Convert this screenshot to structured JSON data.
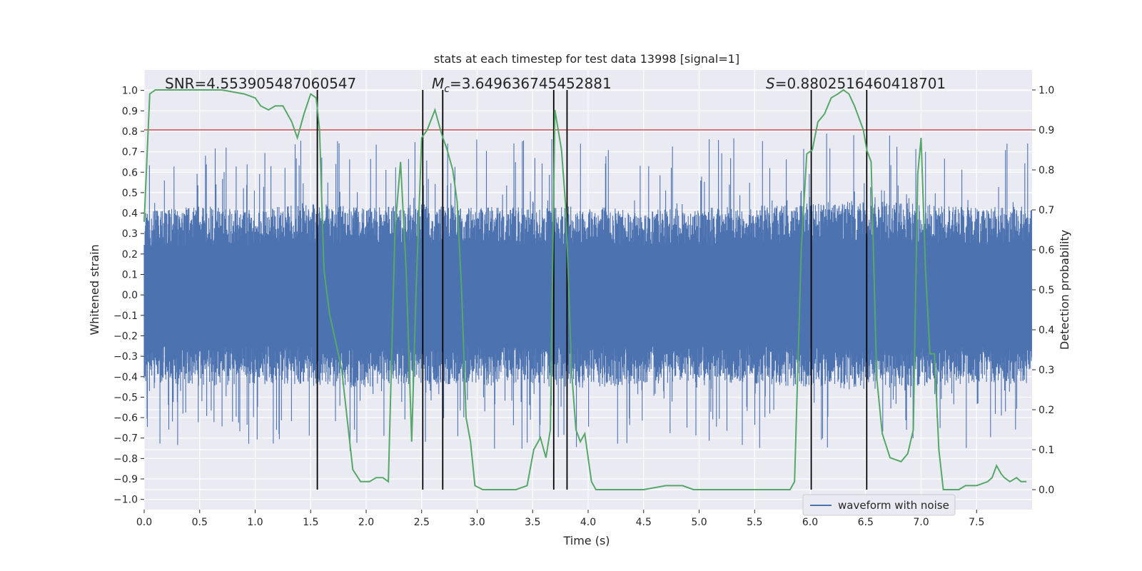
{
  "chart_data": {
    "type": "line",
    "title": "stats at each timestep for test data 13998 [signal=1]",
    "xlabel": "Time (s)",
    "ylabel_left": "Whitened strain",
    "ylabel_right": "Detection probability",
    "xlim": [
      0,
      8
    ],
    "ylim_left": [
      -1.05,
      1.1
    ],
    "ylim_right": [
      -0.05,
      1.05
    ],
    "x_ticks": [
      "0.0",
      "0.5",
      "1.0",
      "1.5",
      "2.0",
      "2.5",
      "3.0",
      "3.5",
      "4.0",
      "4.5",
      "5.0",
      "5.5",
      "6.0",
      "6.5",
      "7.0",
      "7.5"
    ],
    "x_tick_values": [
      0,
      0.5,
      1,
      1.5,
      2,
      2.5,
      3,
      3.5,
      4,
      4.5,
      5,
      5.5,
      6,
      6.5,
      7,
      7.5
    ],
    "y_left_ticks": [
      "1.0",
      "0.9",
      "0.8",
      "0.7",
      "0.6",
      "0.5",
      "0.4",
      "0.3",
      "0.2",
      "0.1",
      "0.0",
      "−0.1",
      "−0.2",
      "−0.3",
      "−0.4",
      "−0.5",
      "−0.6",
      "−0.7",
      "−0.8",
      "−0.9",
      "−1.0"
    ],
    "y_left_tick_values": [
      1,
      0.9,
      0.8,
      0.7,
      0.6,
      0.5,
      0.4,
      0.3,
      0.2,
      0.1,
      0,
      -0.1,
      -0.2,
      -0.3,
      -0.4,
      -0.5,
      -0.6,
      -0.7,
      -0.8,
      -0.9,
      -1
    ],
    "y_right_ticks": [
      "1.0",
      "0.9",
      "0.8",
      "0.7",
      "0.6",
      "0.5",
      "0.4",
      "0.3",
      "0.2",
      "0.1",
      "0.0"
    ],
    "y_right_tick_values": [
      1,
      0.9,
      0.8,
      0.7,
      0.6,
      0.5,
      0.4,
      0.3,
      0.2,
      0.1,
      0
    ],
    "annotations": {
      "snr": "SNR=4.553905487060547",
      "mc_symbol": "M",
      "mc_sub": "c",
      "mc_value": "=3.649636745452881",
      "s_symbol": "S",
      "s_value": "=0.8802516460418701"
    },
    "threshold_right": 0.9,
    "vertical_lines_x": [
      1.56,
      2.51,
      2.69,
      3.69,
      3.81,
      6.01,
      6.51
    ],
    "waveform_envelope": {
      "name": "waveform with noise",
      "color": "#4c72b0",
      "x": [
        0,
        0.5,
        1,
        1.5,
        2,
        2.5,
        3,
        3.5,
        4,
        4.5,
        5,
        5.5,
        6,
        6.5,
        7,
        7.5,
        8
      ],
      "upper": [
        0.42,
        0.45,
        0.43,
        0.47,
        0.44,
        0.46,
        0.45,
        0.44,
        0.45,
        0.43,
        0.44,
        0.45,
        0.47,
        0.48,
        0.46,
        0.44,
        0.45
      ],
      "lower": [
        -0.44,
        -0.46,
        -0.45,
        -0.46,
        -0.47,
        -0.45,
        -0.46,
        -0.46,
        -0.47,
        -0.45,
        -0.44,
        -0.45,
        -0.47,
        -0.48,
        -0.46,
        -0.45,
        -0.45
      ]
    },
    "detection_probability": {
      "color": "#55a868",
      "x": [
        0,
        0.05,
        0.1,
        0.15,
        0.2,
        0.3,
        0.5,
        0.7,
        0.9,
        1,
        1.05,
        1.12,
        1.18,
        1.25,
        1.33,
        1.38,
        1.44,
        1.5,
        1.55,
        1.58,
        1.62,
        1.67,
        1.78,
        1.88,
        1.95,
        2.03,
        2.09,
        2.15,
        2.2,
        2.26,
        2.31,
        2.36,
        2.41,
        2.45,
        2.5,
        2.55,
        2.62,
        2.68,
        2.73,
        2.78,
        2.82,
        2.86,
        2.9,
        2.94,
        2.98,
        3.05,
        3.15,
        3.25,
        3.35,
        3.45,
        3.51,
        3.57,
        3.62,
        3.66,
        3.7,
        3.76,
        3.8,
        3.85,
        3.89,
        3.93,
        3.97,
        4.03,
        4.07,
        4.15,
        4.3,
        4.5,
        4.7,
        4.75,
        4.85,
        4.95,
        5.1,
        5.3,
        5.5,
        5.7,
        5.82,
        5.86,
        5.92,
        5.97,
        6.02,
        6.07,
        6.13,
        6.19,
        6.25,
        6.3,
        6.35,
        6.4,
        6.44,
        6.48,
        6.51,
        6.55,
        6.6,
        6.65,
        6.72,
        6.82,
        6.88,
        6.93,
        6.97,
        7,
        7.04,
        7.08,
        7.12,
        7.16,
        7.2,
        7.25,
        7.3,
        7.34,
        7.4,
        7.5,
        7.6,
        7.64,
        7.68,
        7.72,
        7.75,
        7.8,
        7.86,
        7.9,
        7.95
      ],
      "y": [
        0.67,
        0.99,
        1,
        1,
        1,
        1,
        1,
        1,
        0.99,
        0.98,
        0.96,
        0.95,
        0.96,
        0.96,
        0.92,
        0.88,
        0.94,
        0.99,
        0.98,
        0.9,
        0.55,
        0.44,
        0.3,
        0.05,
        0.02,
        0.02,
        0.03,
        0.03,
        0.02,
        0.65,
        0.82,
        0.55,
        0.12,
        0.5,
        0.88,
        0.9,
        0.95,
        0.89,
        0.85,
        0.8,
        0.72,
        0.5,
        0.18,
        0.12,
        0.01,
        0,
        0,
        0,
        0,
        0.01,
        0.1,
        0.13,
        0.08,
        0.15,
        0.95,
        0.85,
        0.7,
        0.3,
        0.15,
        0.12,
        0.14,
        0.02,
        0,
        0,
        0,
        0,
        0.01,
        0.01,
        0.01,
        0,
        0,
        0,
        0,
        0,
        0,
        0.02,
        0.6,
        0.84,
        0.85,
        0.92,
        0.94,
        0.98,
        0.99,
        1,
        0.99,
        0.96,
        0.93,
        0.9,
        0.85,
        0.82,
        0.28,
        0.14,
        0.08,
        0.07,
        0.09,
        0.15,
        0.79,
        0.88,
        0.55,
        0.34,
        0.34,
        0.1,
        0,
        0,
        0,
        0,
        0.01,
        0.01,
        0.02,
        0.03,
        0.06,
        0.04,
        0.03,
        0.02,
        0.03,
        0.02,
        0.02
      ]
    },
    "legend": {
      "entries": [
        "waveform with noise"
      ],
      "placement": "lower-right"
    },
    "grid": true
  }
}
